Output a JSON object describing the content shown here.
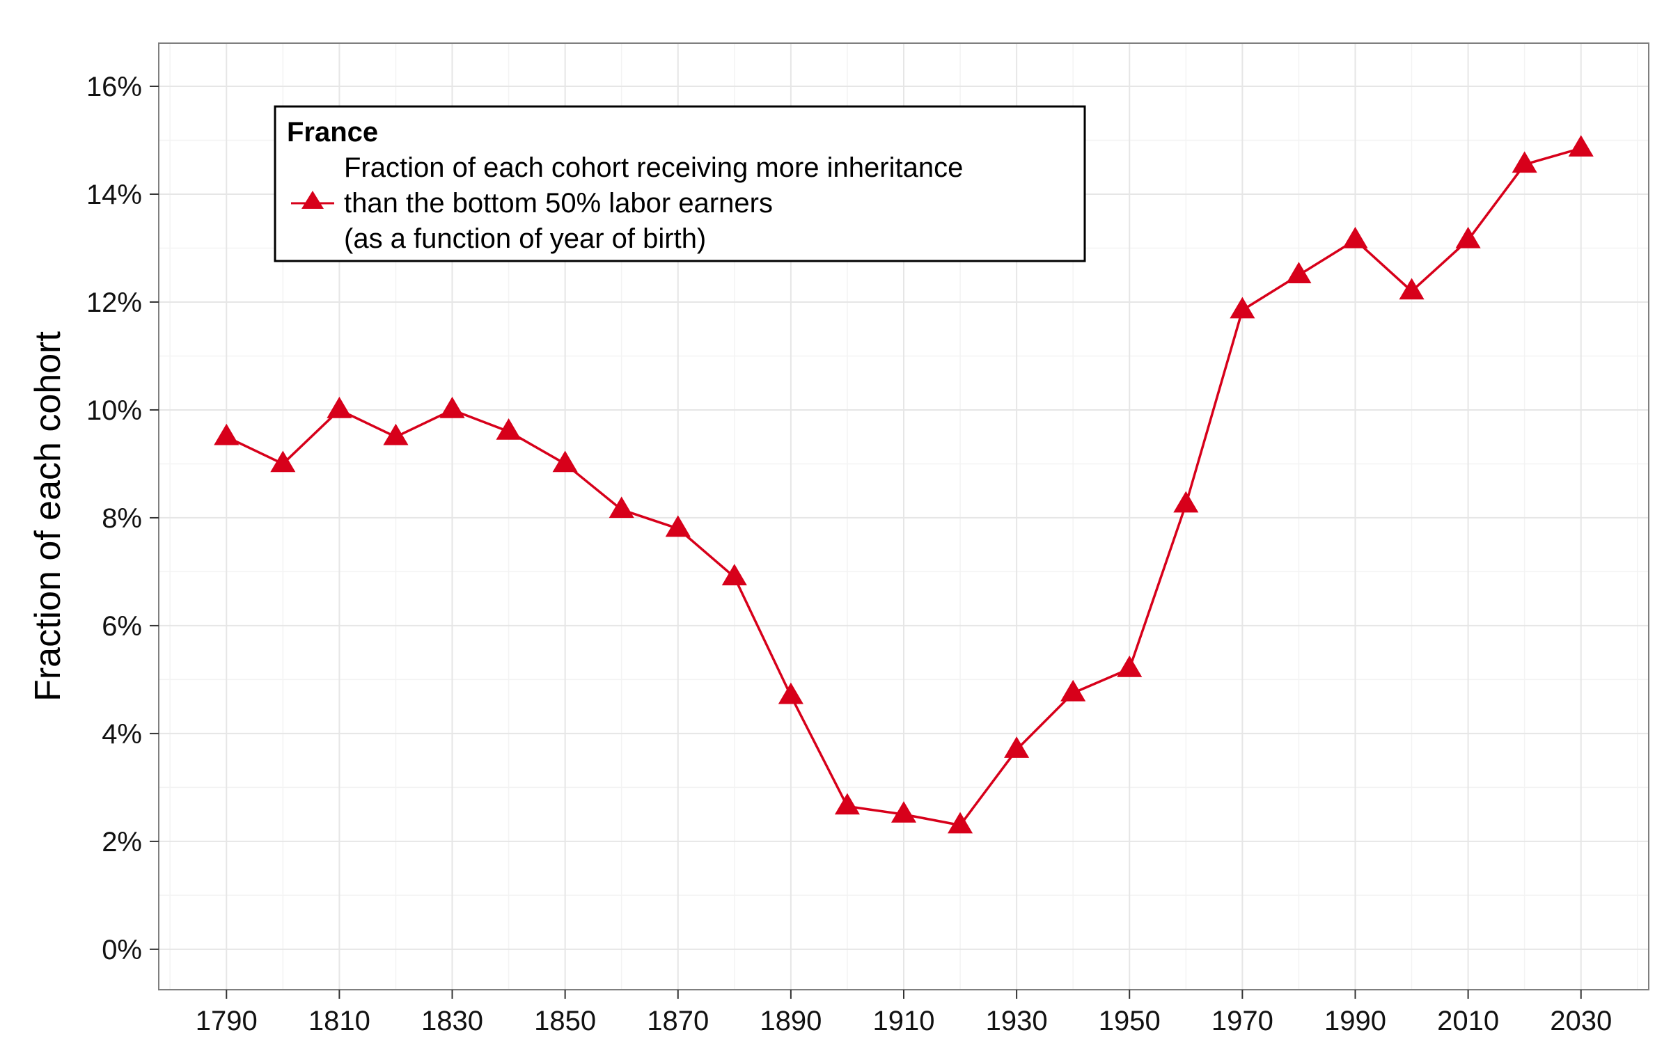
{
  "chart_data": {
    "type": "line",
    "ylabel": "Fraction of each cohort",
    "xlabel": "",
    "x_ticks": [
      "1790",
      "1810",
      "1830",
      "1850",
      "1870",
      "1890",
      "1910",
      "1930",
      "1950",
      "1970",
      "1990",
      "2010",
      "2030"
    ],
    "y_ticks": [
      "0%",
      "2%",
      "4%",
      "6%",
      "8%",
      "10%",
      "12%",
      "14%",
      "16%"
    ],
    "xlim": [
      1778,
      2042
    ],
    "ylim": [
      -0.75,
      16.8
    ],
    "grid": true,
    "legend": {
      "placement": "top-left",
      "title": "France",
      "lines": [
        "Fraction of each cohort receiving more inheritance",
        "than the bottom 50% labor earners",
        "(as a function of year of birth)"
      ]
    },
    "series": [
      {
        "marker": "triangle",
        "color": "#d7001a",
        "x": [
          1790,
          1800,
          1810,
          1820,
          1830,
          1840,
          1850,
          1860,
          1870,
          1880,
          1890,
          1900,
          1910,
          1920,
          1930,
          1940,
          1950,
          1960,
          1970,
          1980,
          1990,
          2000,
          2010,
          2020,
          2030
        ],
        "y": [
          9.5,
          9.0,
          10.0,
          9.5,
          10.0,
          9.6,
          9.0,
          8.15,
          7.8,
          6.9,
          4.7,
          2.65,
          2.5,
          2.3,
          3.7,
          4.75,
          5.2,
          8.25,
          11.85,
          12.5,
          13.15,
          12.2,
          13.15,
          14.55,
          14.85
        ]
      }
    ]
  }
}
